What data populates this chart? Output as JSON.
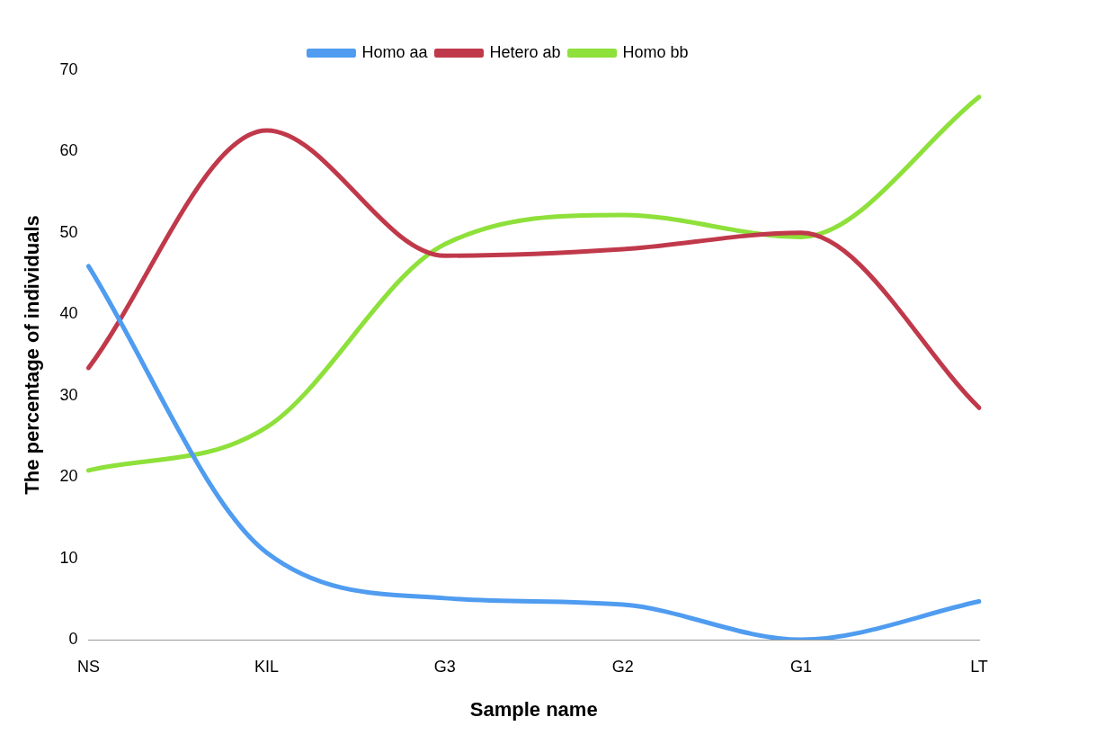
{
  "chart_data": {
    "type": "line",
    "xlabel": "Sample name",
    "ylabel": "The percentage of individuals",
    "categories": [
      "NS",
      "KIL",
      "G3",
      "G2",
      "G1",
      "LT"
    ],
    "series": [
      {
        "name": "Homo aa",
        "color": "#4f9cf0",
        "values": [
          45.9,
          10.7,
          5.1,
          4.3,
          0,
          4.7
        ]
      },
      {
        "name": "Hetero ab",
        "color": "#c0394b",
        "values": [
          33.4,
          62.6,
          47.2,
          48,
          50,
          28.5
        ]
      },
      {
        "name": "Homo bb",
        "color": "#8ee03a",
        "values": [
          20.8,
          26.1,
          48.6,
          52.2,
          49.5,
          66.7
        ]
      }
    ],
    "ylim": [
      0,
      70
    ],
    "yticks": [
      0,
      10,
      20,
      30,
      40,
      50,
      60,
      70
    ],
    "grid": false,
    "legend": "top",
    "marker": "none",
    "line_style": "solid"
  }
}
